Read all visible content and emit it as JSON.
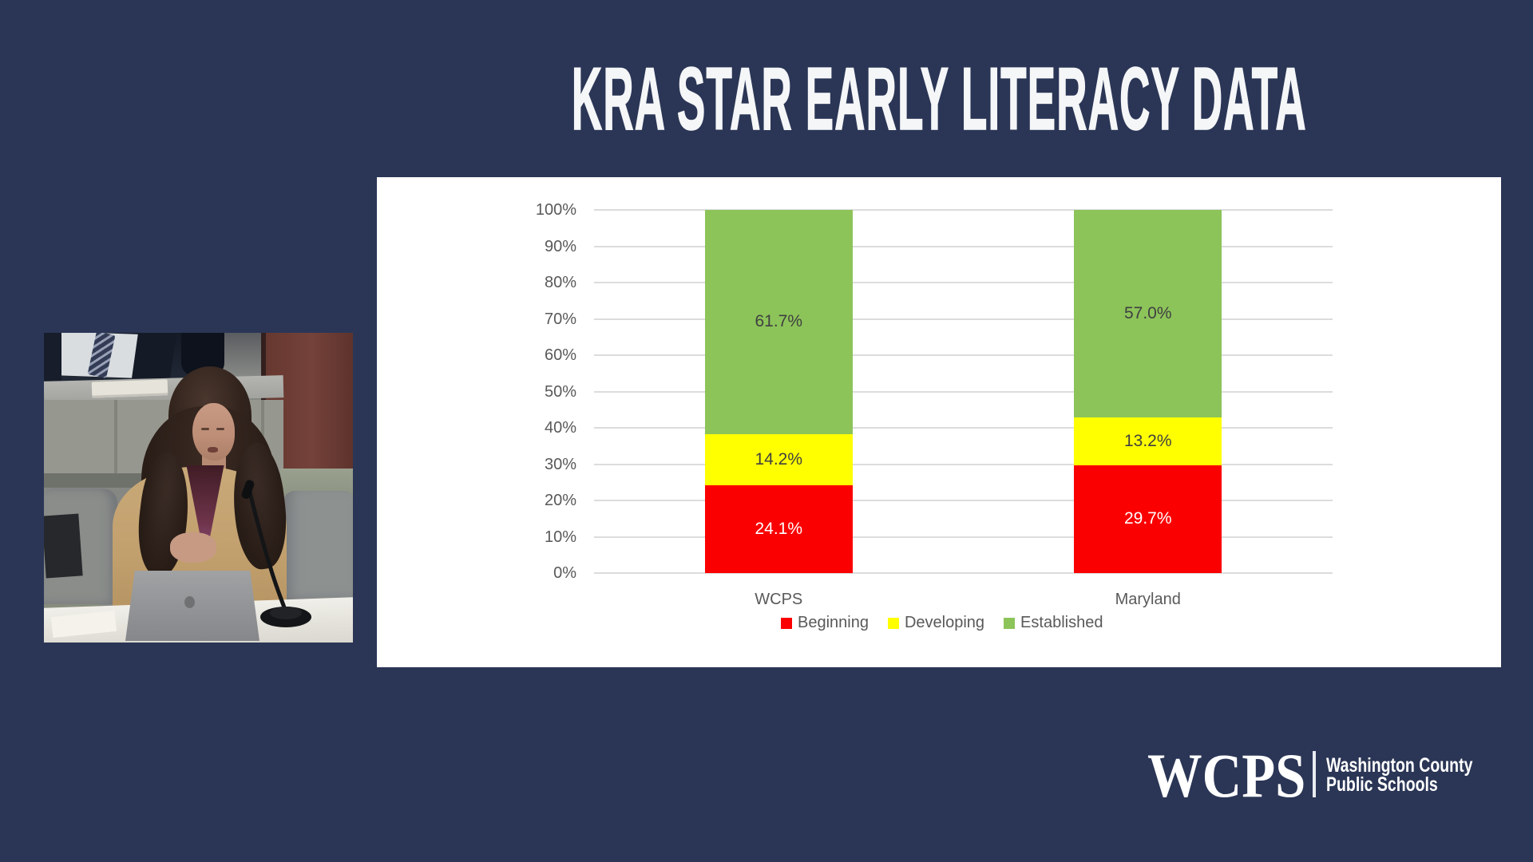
{
  "slide": {
    "title": "KRA STAR EARLY LITERACY DATA",
    "background_color": "#2b3656"
  },
  "chart_data": {
    "type": "bar",
    "stacked": true,
    "title": "KRA STAR Early Literacy Data",
    "categories": [
      "WCPS",
      "Maryland"
    ],
    "series": [
      {
        "name": "Beginning",
        "color": "#fb0000",
        "values": [
          24.1,
          29.7
        ],
        "labels": [
          "24.1%",
          "29.7%"
        ],
        "label_color": "#ffffff"
      },
      {
        "name": "Developing",
        "color": "#ffff00",
        "values": [
          14.2,
          13.2
        ],
        "labels": [
          "14.2%",
          "13.2%"
        ],
        "label_color": "#404040"
      },
      {
        "name": "Established",
        "color": "#8cc45a",
        "values": [
          61.7,
          57.0
        ],
        "labels": [
          "61.7%",
          "57.0%"
        ],
        "label_color": "#404040"
      }
    ],
    "y_ticks": [
      "0%",
      "10%",
      "20%",
      "30%",
      "40%",
      "50%",
      "60%",
      "70%",
      "80%",
      "90%",
      "100%"
    ],
    "ylim": [
      0,
      100
    ],
    "grid": true,
    "legend_position": "bottom"
  },
  "video_inset": {
    "content": "speaker at conference table with laptop and microphone"
  },
  "logo": {
    "acronym": "WCPS",
    "name_line1": "Washington County",
    "name_line2": "Public Schools"
  }
}
